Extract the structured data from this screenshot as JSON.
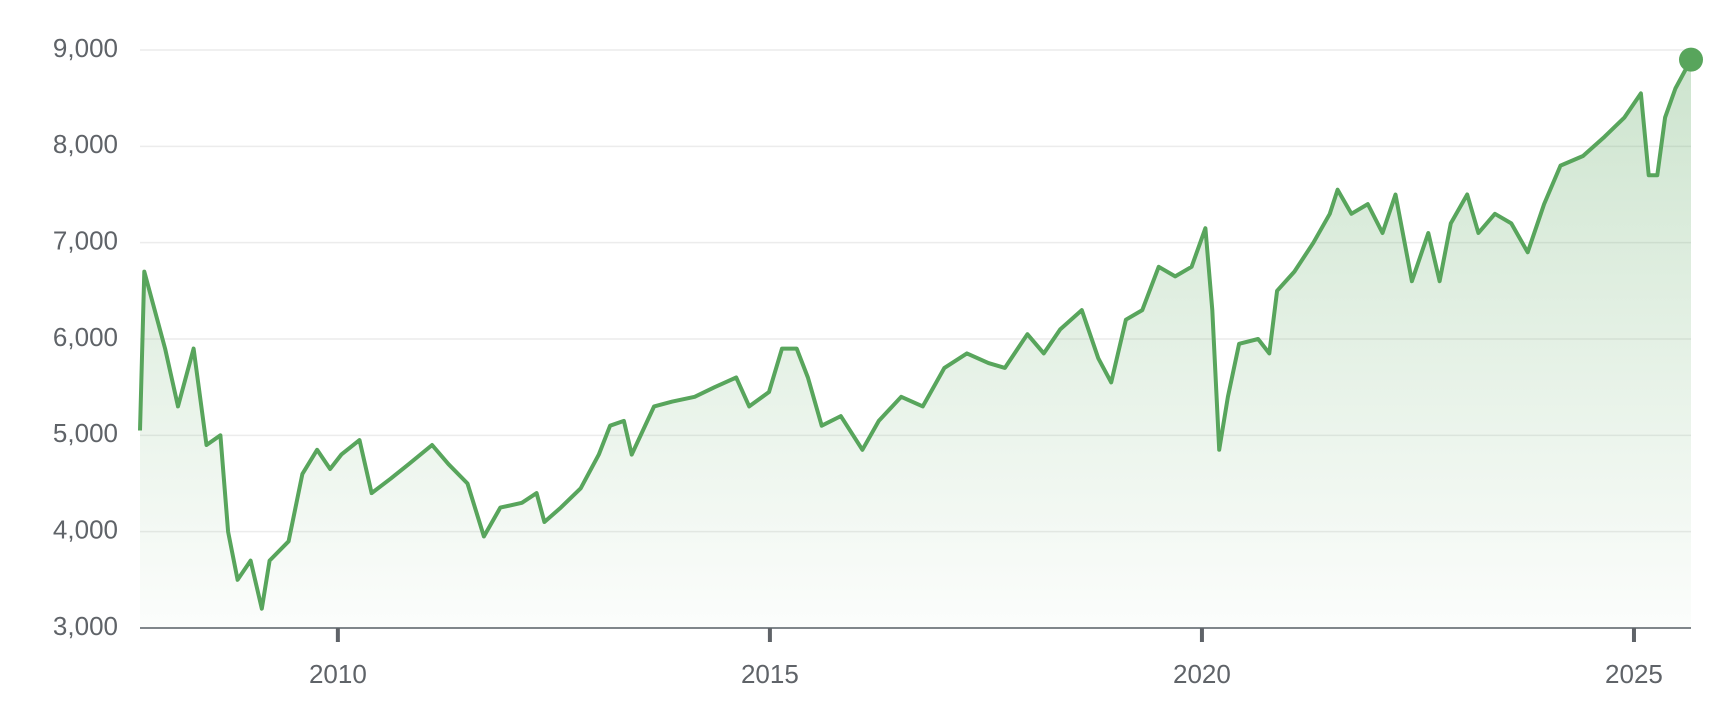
{
  "chart_data": {
    "type": "line",
    "x": [
      2007.71,
      2007.76,
      2008.0,
      2008.15,
      2008.33,
      2008.48,
      2008.64,
      2008.73,
      2008.84,
      2008.99,
      2009.12,
      2009.21,
      2009.43,
      2009.59,
      2009.76,
      2009.91,
      2010.04,
      2010.25,
      2010.39,
      2010.61,
      2010.82,
      2011.09,
      2011.28,
      2011.5,
      2011.69,
      2011.88,
      2012.13,
      2012.3,
      2012.39,
      2012.58,
      2012.81,
      2013.02,
      2013.15,
      2013.31,
      2013.4,
      2013.66,
      2013.87,
      2014.13,
      2014.36,
      2014.61,
      2014.76,
      2014.99,
      2015.14,
      2015.31,
      2015.44,
      2015.6,
      2015.82,
      2016.07,
      2016.26,
      2016.52,
      2016.77,
      2017.02,
      2017.28,
      2017.53,
      2017.72,
      2017.98,
      2018.17,
      2018.36,
      2018.61,
      2018.8,
      2018.95,
      2019.12,
      2019.31,
      2019.5,
      2019.69,
      2019.88,
      2020.04,
      2020.12,
      2020.2,
      2020.3,
      2020.43,
      2020.65,
      2020.78,
      2020.87,
      2021.07,
      2021.29,
      2021.48,
      2021.57,
      2021.73,
      2021.92,
      2022.09,
      2022.24,
      2022.43,
      2022.62,
      2022.75,
      2022.88,
      2023.07,
      2023.2,
      2023.39,
      2023.58,
      2023.77,
      2023.96,
      2024.15,
      2024.41,
      2024.66,
      2024.89,
      2025.08,
      2025.17,
      2025.27,
      2025.36,
      2025.48,
      2025.66
    ],
    "values": [
      5050,
      6700,
      5900,
      5300,
      5900,
      4900,
      5000,
      4000,
      3500,
      3700,
      3200,
      3700,
      3900,
      4600,
      4850,
      4650,
      4800,
      4950,
      4400,
      4550,
      4700,
      4900,
      4700,
      4500,
      3950,
      4250,
      4300,
      4400,
      4100,
      4250,
      4450,
      4800,
      5100,
      5150,
      4800,
      5300,
      5350,
      5400,
      5500,
      5600,
      5300,
      5450,
      5900,
      5900,
      5600,
      5100,
      5200,
      4850,
      5150,
      5400,
      5300,
      5700,
      5850,
      5750,
      5700,
      6050,
      5850,
      6100,
      6300,
      5800,
      5550,
      6200,
      6300,
      6750,
      6650,
      6750,
      7150,
      6300,
      4850,
      5400,
      5950,
      6000,
      5850,
      6500,
      6700,
      7000,
      7300,
      7550,
      7300,
      7400,
      7100,
      7500,
      6600,
      7100,
      6600,
      7200,
      7500,
      7100,
      7300,
      7200,
      6900,
      7400,
      7800,
      7900,
      8100,
      8300,
      8550,
      7700,
      7700,
      8300,
      8600,
      8900
    ],
    "color": "#58a55c",
    "xlim": [
      2007.71,
      2025.66
    ],
    "xticks": [
      2010,
      2015,
      2020,
      2025
    ],
    "ylim": [
      3000,
      9000
    ],
    "yticks": [
      {
        "value": 3000,
        "label": "3,000"
      },
      {
        "value": 4000,
        "label": "4,000"
      },
      {
        "value": 5000,
        "label": "5,000"
      },
      {
        "value": 6000,
        "label": "6,000"
      },
      {
        "value": 7000,
        "label": "7,000"
      },
      {
        "value": 8000,
        "label": "8,000"
      },
      {
        "value": 9000,
        "label": "9,000"
      }
    ],
    "grid": true
  }
}
